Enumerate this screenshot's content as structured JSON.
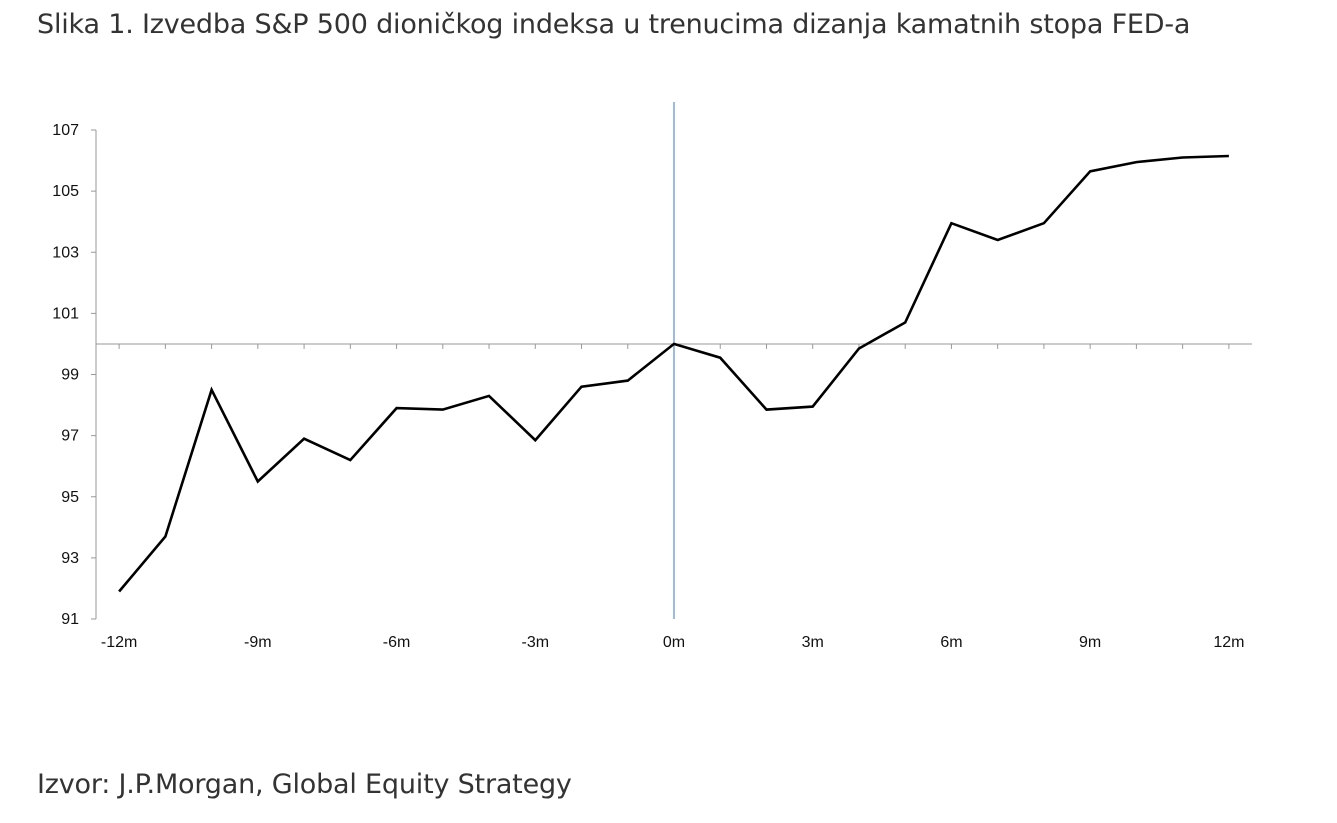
{
  "figure_title": "Slika 1. Izvedba S&P 500 dioničkog indeksa u trenucima dizanja kamatnih stopa FED-a",
  "figure_source": "Izvor: J.P.Morgan, Global Equity Strategy",
  "chart_data": {
    "type": "line",
    "title": "",
    "xlabel": "",
    "ylabel": "",
    "x": [
      -12,
      -11,
      -10,
      -9,
      -8,
      -7,
      -6,
      -5,
      -4,
      -3,
      -2,
      -1,
      0,
      1,
      2,
      3,
      4,
      5,
      6,
      7,
      8,
      9,
      10,
      11,
      12
    ],
    "series": [
      {
        "values": [
          91.9,
          93.7,
          98.5,
          95.5,
          96.9,
          96.2,
          97.9,
          97.85,
          98.3,
          96.85,
          98.6,
          98.8,
          100.0,
          99.55,
          97.85,
          97.95,
          99.85,
          100.7,
          103.95,
          103.4,
          103.95,
          105.65,
          105.95,
          106.1,
          106.15
        ]
      }
    ],
    "xticks": [
      -12,
      -9,
      -6,
      -3,
      0,
      3,
      6,
      9,
      12
    ],
    "xtick_labels": [
      "-12m",
      "-9m",
      "-6m",
      "-3m",
      "0m",
      "3m",
      "6m",
      "9m",
      "12m"
    ],
    "yticks": [
      91,
      93,
      95,
      97,
      99,
      101,
      103,
      105,
      107
    ],
    "xlim": [
      -12.5,
      12.5
    ],
    "ylim": [
      91,
      107
    ],
    "x_axis_crosses_y_at": 100,
    "reference_line_x": 0,
    "grid": false,
    "colors": {
      "series": "#000000",
      "reference_line": "#7fa6d6",
      "axis": "#999999"
    }
  }
}
